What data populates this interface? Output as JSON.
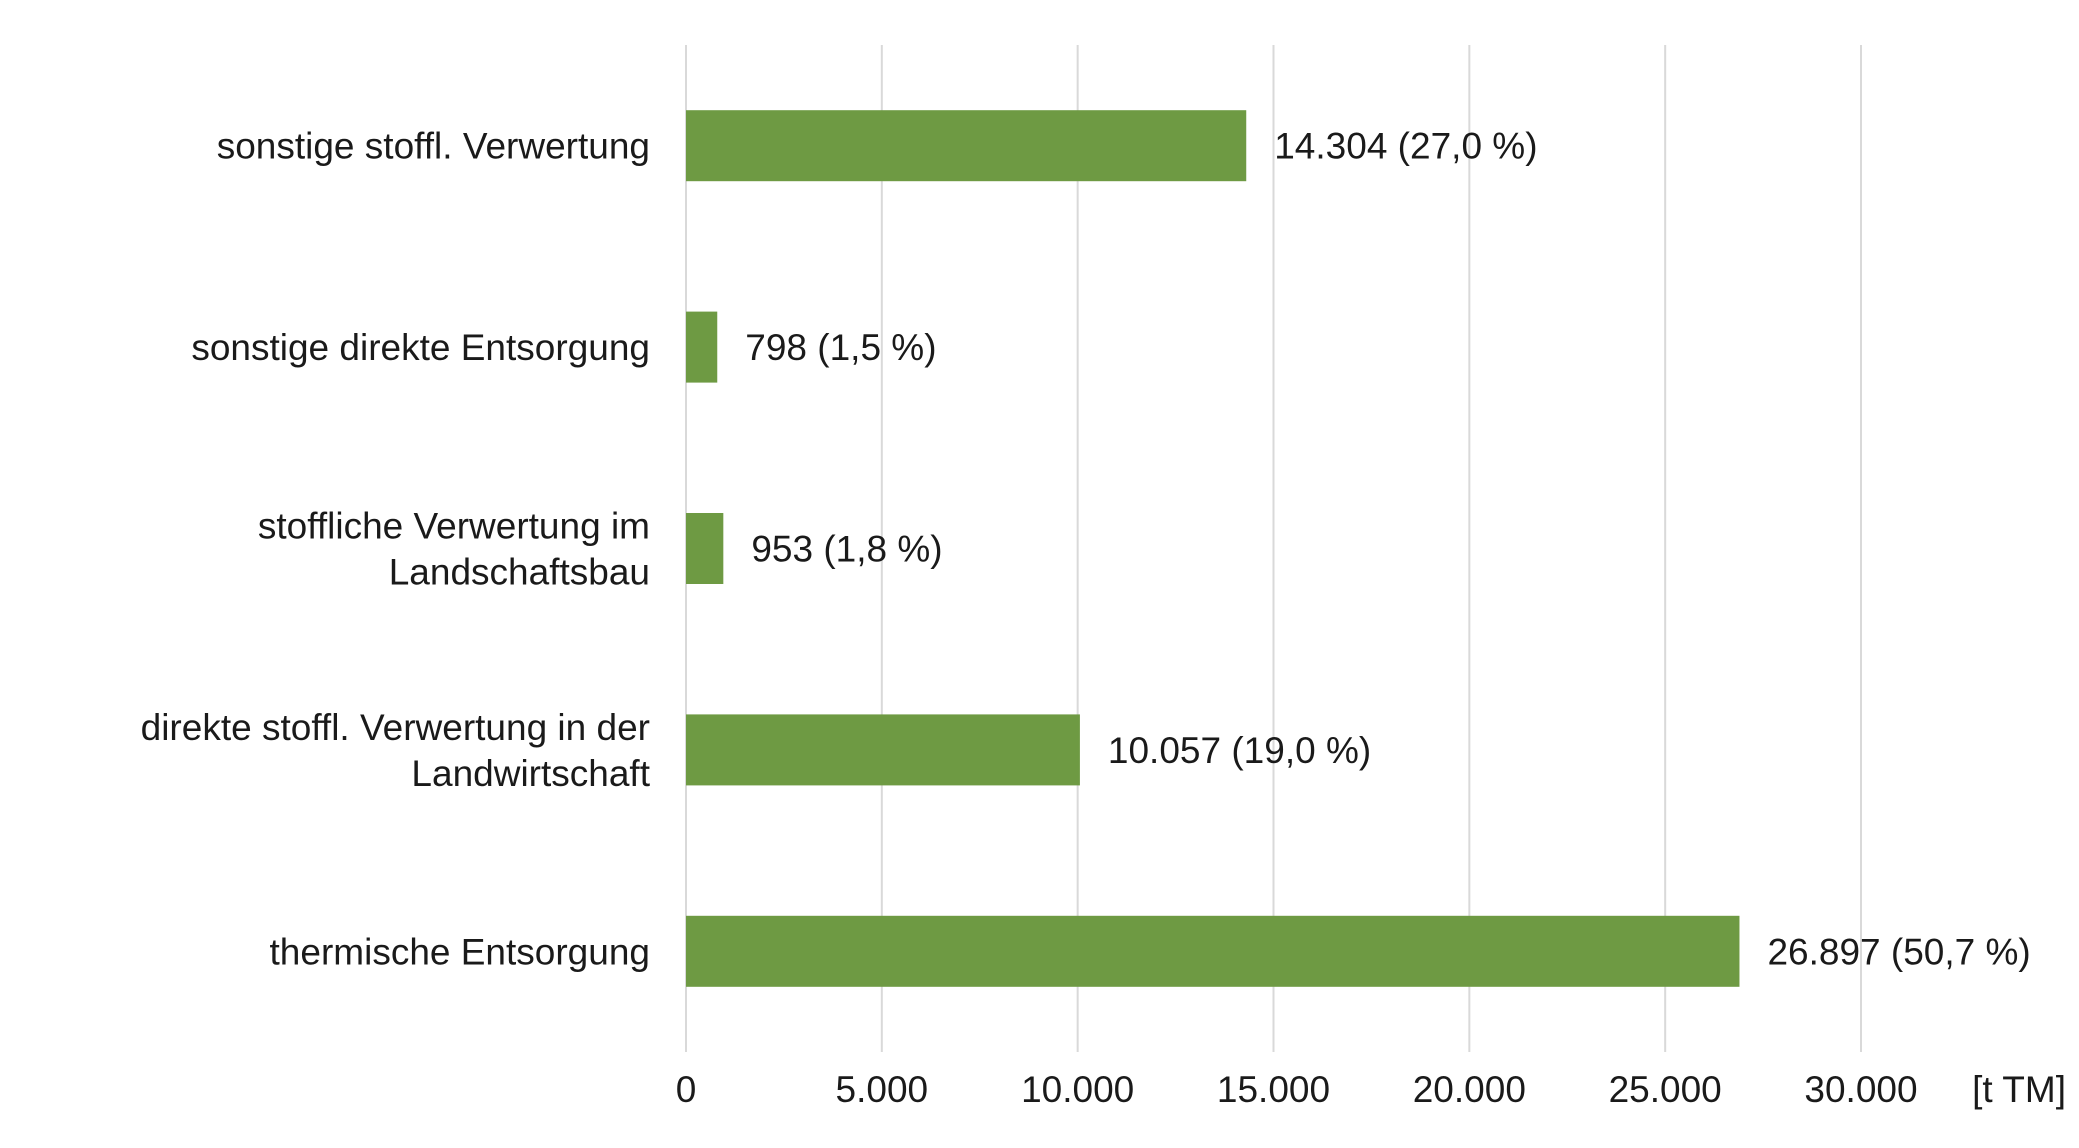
{
  "chart_data": {
    "type": "bar",
    "orientation": "horizontal",
    "categories": [
      [
        "sonstige stoffl. Verwertung"
      ],
      [
        "sonstige direkte Entsorgung"
      ],
      [
        "stoffliche Verwertung im",
        "Landschaftsbau"
      ],
      [
        "direkte stoffl. Verwertung in der",
        "Landwirtschaft"
      ],
      [
        "thermische Entsorgung"
      ]
    ],
    "values": [
      14304,
      798,
      953,
      10057,
      26897
    ],
    "data_labels": [
      "14.304 (27,0 %)",
      "798 (1,5 %)",
      "953 (1,8 %)",
      "10.057 (19,0 %)",
      "26.897 (50,7 %)"
    ],
    "x_ticks": [
      0,
      5000,
      10000,
      15000,
      20000,
      25000,
      30000
    ],
    "x_tick_labels": [
      "0",
      "5.000",
      "10.000",
      "15.000",
      "20.000",
      "25.000",
      "30.000"
    ],
    "xlim": [
      0,
      30000
    ],
    "xlabel": "[t TM]",
    "grid": "vertical",
    "legend": "none",
    "bar_color": "#6e9a43"
  }
}
